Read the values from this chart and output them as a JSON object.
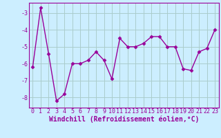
{
  "x": [
    0,
    1,
    2,
    3,
    4,
    5,
    6,
    7,
    8,
    9,
    10,
    11,
    12,
    13,
    14,
    15,
    16,
    17,
    18,
    19,
    20,
    21,
    22,
    23
  ],
  "y": [
    -6.2,
    -2.7,
    -5.4,
    -8.2,
    -7.8,
    -6.0,
    -6.0,
    -5.8,
    -5.3,
    -5.8,
    -6.9,
    -4.5,
    -5.0,
    -5.0,
    -4.8,
    -4.4,
    -4.4,
    -5.0,
    -5.0,
    -6.3,
    -6.4,
    -5.3,
    -5.1,
    -4.0
  ],
  "line_color": "#990099",
  "marker": "D",
  "marker_size": 2.5,
  "bg_color": "#cceeff",
  "grid_color": "#aacccc",
  "xlabel": "Windchill (Refroidissement éolien,°C)",
  "ylabel": "",
  "xlim": [
    -0.5,
    23.5
  ],
  "ylim": [
    -8.6,
    -2.4
  ],
  "yticks": [
    -8,
    -7,
    -6,
    -5,
    -4,
    -3
  ],
  "xticks": [
    0,
    1,
    2,
    3,
    4,
    5,
    6,
    7,
    8,
    9,
    10,
    11,
    12,
    13,
    14,
    15,
    16,
    17,
    18,
    19,
    20,
    21,
    22,
    23
  ],
  "tick_fontsize": 6,
  "xlabel_fontsize": 7,
  "line_width": 1.0
}
